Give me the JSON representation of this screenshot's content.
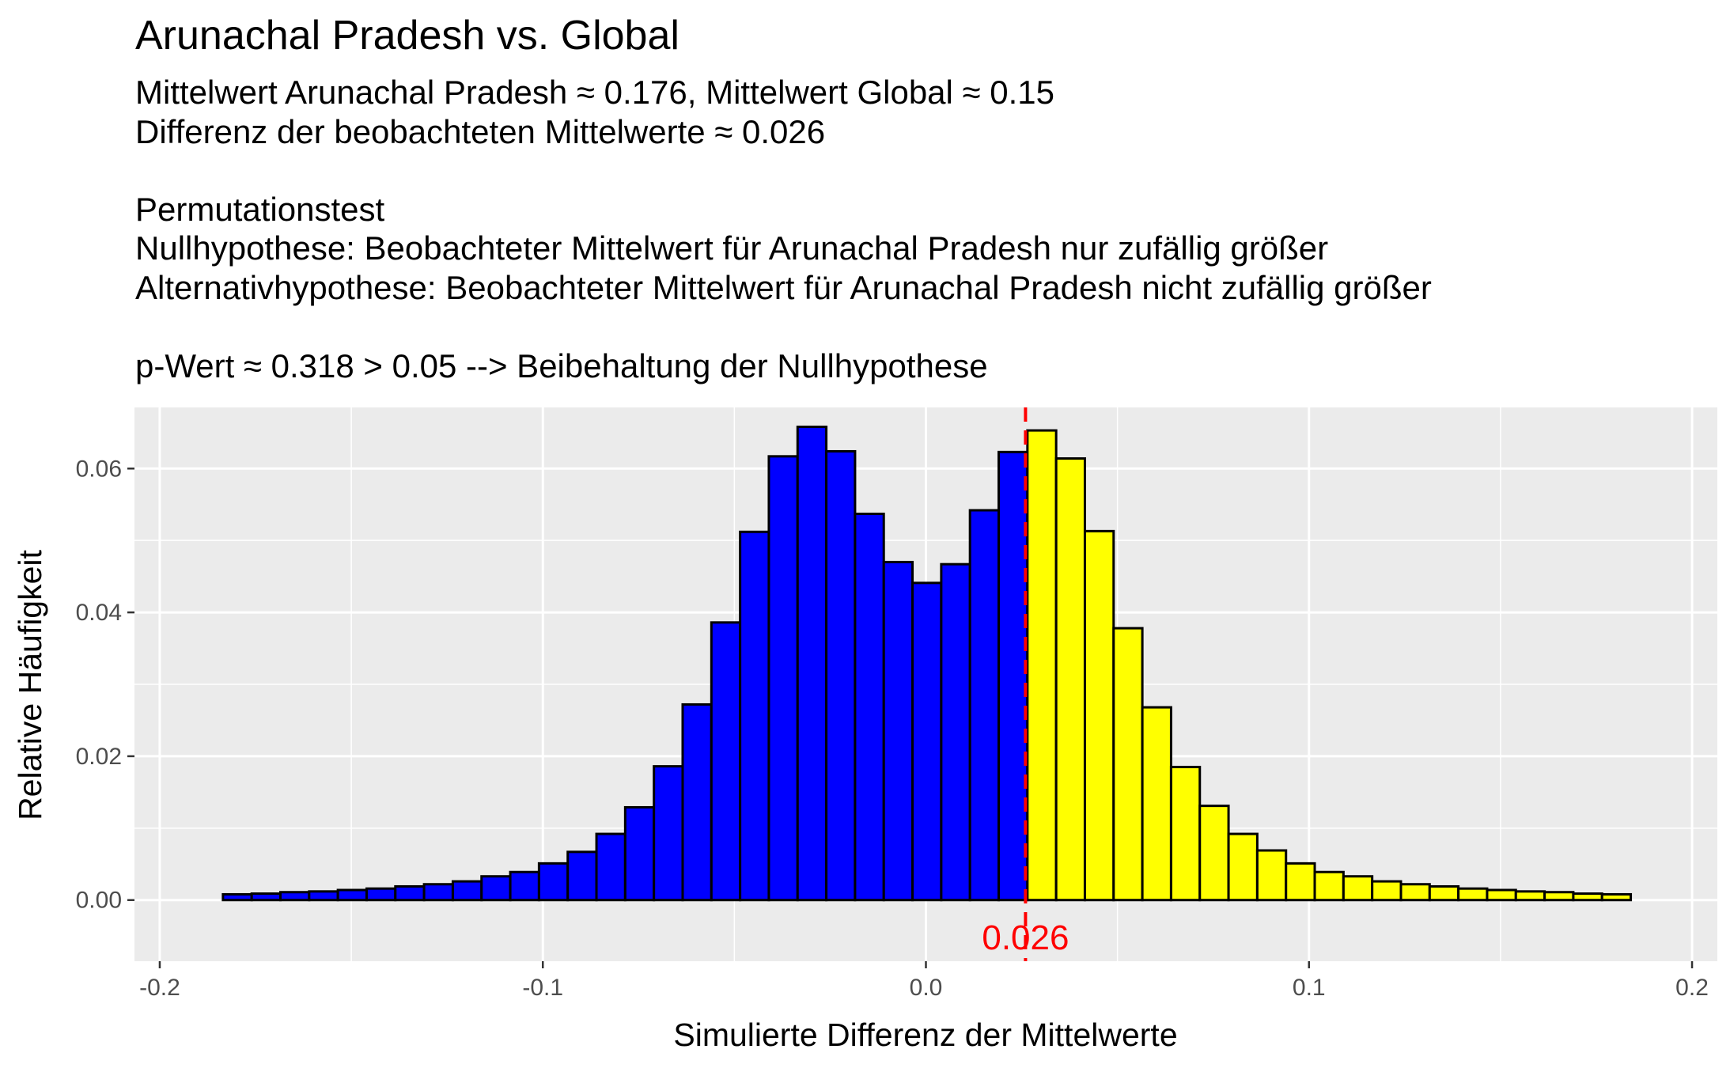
{
  "chart_data": {
    "type": "bar",
    "title": "Arunachal Pradesh vs. Global",
    "subtitle_lines": [
      "Mittelwert Arunachal Pradesh ≈ 0.176, Mittelwert Global ≈ 0.15",
      "Differenz der beobachteten Mittelwerte ≈ 0.026",
      "",
      "Permutationstest",
      "Nullhypothese: Beobachteter Mittelwert für Arunachal Pradesh nur zufällig größer",
      "Alternativhypothese: Beobachteter Mittelwert für Arunachal Pradesh nicht zufällig größer",
      "",
      "p-Wert ≈ 0.318 > 0.05 --> Beibehaltung der Nullhypothese"
    ],
    "xlabel": "Simulierte Differenz der Mittelwerte",
    "ylabel": "Relative Häufigkeit",
    "xlim": [
      -0.2066,
      0.2066
    ],
    "ylim": [
      -0.0085,
      0.0685
    ],
    "x_ticks": [
      -0.2,
      -0.1,
      0.0,
      0.1,
      0.2
    ],
    "x_tick_labels": [
      "-0.2",
      "-0.1",
      "0.0",
      "0.1",
      "0.2"
    ],
    "y_ticks": [
      0.0,
      0.02,
      0.04,
      0.06
    ],
    "y_tick_labels": [
      "0.00",
      "0.02",
      "0.04",
      "0.06"
    ],
    "grid": true,
    "bin_width": 0.0075,
    "observed_difference": 0.026,
    "observed_label": "0.026",
    "bins": [
      {
        "x0": -0.1835,
        "x1": -0.176,
        "value": 0.0008
      },
      {
        "x0": -0.176,
        "x1": -0.1685,
        "value": 0.0009
      },
      {
        "x0": -0.1685,
        "x1": -0.161,
        "value": 0.0011
      },
      {
        "x0": -0.161,
        "x1": -0.1535,
        "value": 0.0012
      },
      {
        "x0": -0.1535,
        "x1": -0.146,
        "value": 0.0014
      },
      {
        "x0": -0.146,
        "x1": -0.1385,
        "value": 0.0016
      },
      {
        "x0": -0.1385,
        "x1": -0.131,
        "value": 0.0019
      },
      {
        "x0": -0.131,
        "x1": -0.1235,
        "value": 0.0022
      },
      {
        "x0": -0.1235,
        "x1": -0.116,
        "value": 0.0026
      },
      {
        "x0": -0.116,
        "x1": -0.1085,
        "value": 0.0033
      },
      {
        "x0": -0.1085,
        "x1": -0.101,
        "value": 0.0039
      },
      {
        "x0": -0.101,
        "x1": -0.0935,
        "value": 0.0051
      },
      {
        "x0": -0.0935,
        "x1": -0.086,
        "value": 0.0067
      },
      {
        "x0": -0.086,
        "x1": -0.0785,
        "value": 0.0092
      },
      {
        "x0": -0.0785,
        "x1": -0.071,
        "value": 0.0129
      },
      {
        "x0": -0.071,
        "x1": -0.0635,
        "value": 0.0186
      },
      {
        "x0": -0.0635,
        "x1": -0.056,
        "value": 0.0272
      },
      {
        "x0": -0.056,
        "x1": -0.0485,
        "value": 0.0386
      },
      {
        "x0": -0.0485,
        "x1": -0.041,
        "value": 0.0512
      },
      {
        "x0": -0.041,
        "x1": -0.0335,
        "value": 0.0617
      },
      {
        "x0": -0.0335,
        "x1": -0.026,
        "value": 0.0658
      },
      {
        "x0": -0.026,
        "x1": -0.0185,
        "value": 0.0624
      },
      {
        "x0": -0.0185,
        "x1": -0.011,
        "value": 0.0537
      },
      {
        "x0": -0.011,
        "x1": -0.0035,
        "value": 0.047
      },
      {
        "x0": -0.0035,
        "x1": 0.004,
        "value": 0.0441
      },
      {
        "x0": 0.004,
        "x1": 0.0115,
        "value": 0.0467
      },
      {
        "x0": 0.0115,
        "x1": 0.019,
        "value": 0.0542
      },
      {
        "x0": 0.019,
        "x1": 0.0265,
        "value": 0.0623
      },
      {
        "x0": 0.0265,
        "x1": 0.034,
        "value": 0.0653
      },
      {
        "x0": 0.034,
        "x1": 0.0415,
        "value": 0.0614
      },
      {
        "x0": 0.0415,
        "x1": 0.049,
        "value": 0.0513
      },
      {
        "x0": 0.049,
        "x1": 0.0565,
        "value": 0.0378
      },
      {
        "x0": 0.0565,
        "x1": 0.064,
        "value": 0.0268
      },
      {
        "x0": 0.064,
        "x1": 0.0715,
        "value": 0.0185
      },
      {
        "x0": 0.0715,
        "x1": 0.079,
        "value": 0.0131
      },
      {
        "x0": 0.079,
        "x1": 0.0865,
        "value": 0.0092
      },
      {
        "x0": 0.0865,
        "x1": 0.094,
        "value": 0.0069
      },
      {
        "x0": 0.094,
        "x1": 0.1015,
        "value": 0.0051
      },
      {
        "x0": 0.1015,
        "x1": 0.109,
        "value": 0.0039
      },
      {
        "x0": 0.109,
        "x1": 0.1165,
        "value": 0.0033
      },
      {
        "x0": 0.1165,
        "x1": 0.124,
        "value": 0.0026
      },
      {
        "x0": 0.124,
        "x1": 0.1315,
        "value": 0.0022
      },
      {
        "x0": 0.1315,
        "x1": 0.139,
        "value": 0.0019
      },
      {
        "x0": 0.139,
        "x1": 0.1465,
        "value": 0.0016
      },
      {
        "x0": 0.1465,
        "x1": 0.154,
        "value": 0.0014
      },
      {
        "x0": 0.154,
        "x1": 0.1615,
        "value": 0.0012
      },
      {
        "x0": 0.1615,
        "x1": 0.169,
        "value": 0.0011
      },
      {
        "x0": 0.169,
        "x1": 0.1765,
        "value": 0.0009
      },
      {
        "x0": 0.1765,
        "x1": 0.184,
        "value": 0.0008
      }
    ],
    "colors": {
      "below_observed": "#0000ff",
      "at_or_above_observed": "#ffff00",
      "bar_outline": "#000000",
      "observed_line": "#ff0000",
      "panel_background": "#ebebeb",
      "grid": "#ffffff"
    }
  }
}
